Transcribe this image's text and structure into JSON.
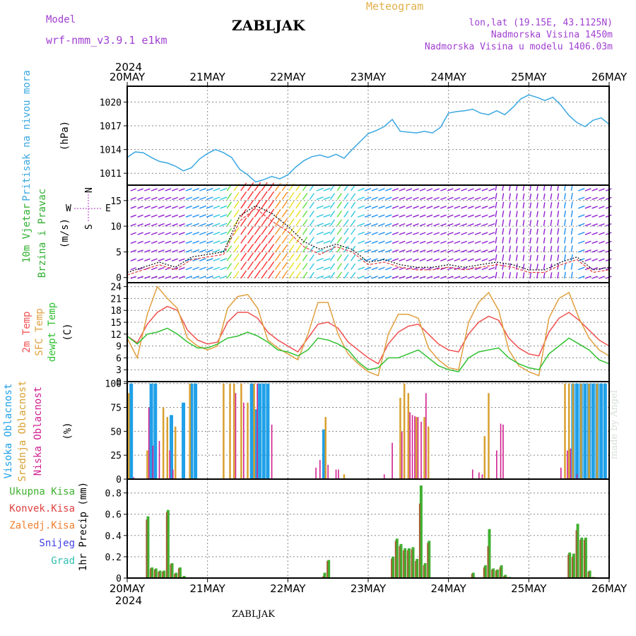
{
  "header": {
    "model_label": "Model",
    "model_name": "wrf-nmm_v3.9.1 e1km",
    "title": "ZABLJAK",
    "product": "Meteogram",
    "lonlat": "lon,lat (19.15E, 43.1125N)",
    "altitude": "Nadmorska Visina 1450m",
    "model_altitude": "Nadmorska Visina u modelu 1406.03m",
    "footer_station": "ZABLJAK",
    "watermark": "made by Angel"
  },
  "time_axis": {
    "year": "2024",
    "labels": [
      "20MAY",
      "21MAY",
      "22MAY",
      "23MAY",
      "24MAY",
      "25MAY",
      "26MAY"
    ]
  },
  "colors": {
    "pressure": "#3aa8e0",
    "t2m": "#f05050",
    "sfc": "#e0a040",
    "dewpt": "#30c030",
    "high_cloud": "#20a0e8",
    "mid_cloud": "#d8a030",
    "low_cloud": "#d02090",
    "total_precip": "#40b030",
    "conv_precip": "#e04040",
    "frz_precip": "#f08030",
    "snow": "#4040e0",
    "grad": "#30c0b0",
    "wind_dir": "#b030c0",
    "wind_speed_label": "#30b030"
  },
  "chart_data": [
    {
      "type": "line",
      "ylabel_main": "Pritisak na nivou mora",
      "ylabel_unit": "(hPa)",
      "yticks": [
        "1011",
        "1014",
        "1017",
        "1020"
      ],
      "ylim": [
        1009.5,
        1022
      ],
      "grid": true,
      "x_days": [
        0,
        0.1,
        0.2,
        0.3,
        0.4,
        0.5,
        0.6,
        0.7,
        0.8,
        0.9,
        1.0,
        1.1,
        1.2,
        1.3,
        1.4,
        1.5,
        1.6,
        1.7,
        1.8,
        1.9,
        2.0,
        2.1,
        2.2,
        2.3,
        2.4,
        2.5,
        2.6,
        2.7,
        2.8,
        2.9,
        3.0,
        3.1,
        3.2,
        3.3,
        3.4,
        3.5,
        3.6,
        3.7,
        3.8,
        3.9,
        4.0,
        4.1,
        4.2,
        4.3,
        4.4,
        4.5,
        4.6,
        4.7,
        4.8,
        4.9,
        5.0,
        5.1,
        5.2,
        5.3,
        5.4,
        5.5,
        5.6,
        5.7,
        5.8,
        5.9,
        6.0
      ],
      "series": [
        {
          "values": [
            1013.0,
            1013.7,
            1013.6,
            1013.0,
            1012.5,
            1012.3,
            1011.9,
            1011.3,
            1011.7,
            1012.8,
            1013.5,
            1014.0,
            1013.6,
            1013.0,
            1011.5,
            1010.8,
            1009.9,
            1010.2,
            1010.6,
            1010.3,
            1010.8,
            1011.8,
            1012.6,
            1013.1,
            1013.3,
            1013.0,
            1013.4,
            1012.9,
            1014.0,
            1015.0,
            1016.0,
            1016.4,
            1016.9,
            1017.8,
            1016.3,
            1016.2,
            1016.1,
            1016.3,
            1016.1,
            1016.8,
            1018.6,
            1018.8,
            1018.9,
            1019.1,
            1018.6,
            1018.4,
            1018.9,
            1018.4,
            1019.3,
            1020.4,
            1020.9,
            1020.6,
            1020.2,
            1020.6,
            1019.6,
            1018.3,
            1017.4,
            1016.9,
            1017.7,
            1018.0,
            1017.2
          ],
          "color": "#3aa8e0"
        }
      ]
    },
    {
      "type": "line",
      "ylabel_main": "10m Vjetar",
      "ylabel_sub": "Brzina i Pravac",
      "ylabel_unit": "(m/s)",
      "compass_labels": [
        "N",
        "E",
        "S",
        "W"
      ],
      "yticks": [
        "0",
        "5",
        "10",
        "15"
      ],
      "ylim": [
        -1,
        18
      ],
      "grid": true,
      "x_days": [
        0,
        0.2,
        0.4,
        0.6,
        0.8,
        1.0,
        1.2,
        1.4,
        1.6,
        1.8,
        2.0,
        2.2,
        2.4,
        2.6,
        2.8,
        3.0,
        3.2,
        3.4,
        3.6,
        3.8,
        4.0,
        4.2,
        4.4,
        4.6,
        4.8,
        5.0,
        5.2,
        5.4,
        5.6,
        5.8,
        6.0
      ],
      "series": [
        {
          "name": "speed",
          "values": [
            0.5,
            1.5,
            2.5,
            1.5,
            3.5,
            4.0,
            4.5,
            11.0,
            13.5,
            11.0,
            9.0,
            6.0,
            4.5,
            6.0,
            5.0,
            2.5,
            3.0,
            2.0,
            1.5,
            1.5,
            2.0,
            1.5,
            2.0,
            2.5,
            2.0,
            1.0,
            1.0,
            2.5,
            3.5,
            1.0,
            1.5
          ],
          "color": "#e04040"
        },
        {
          "name": "gust",
          "values": [
            1.0,
            2.0,
            3.0,
            2.0,
            4.0,
            4.5,
            5.0,
            12.0,
            14.0,
            12.5,
            10.0,
            7.0,
            5.5,
            6.5,
            5.5,
            3.0,
            3.5,
            2.5,
            2.0,
            2.0,
            2.5,
            2.0,
            2.5,
            3.0,
            2.5,
            1.5,
            1.5,
            3.0,
            4.0,
            1.5,
            2.0
          ],
          "color": "#000000"
        }
      ]
    },
    {
      "type": "line",
      "ylabel_lines": [
        {
          "text": "2m Temp",
          "color": "#f05050"
        },
        {
          "text": "SFC Temp",
          "color": "#e0a040"
        },
        {
          "text": "dewpt Temp",
          "color": "#30c030"
        }
      ],
      "ylabel_unit": "(C)",
      "yticks": [
        "0",
        "3",
        "6",
        "9",
        "12",
        "15",
        "18",
        "21",
        "24"
      ],
      "ylim": [
        0,
        25
      ],
      "grid": true,
      "x_days": [
        0,
        0.125,
        0.25,
        0.375,
        0.5,
        0.625,
        0.75,
        0.875,
        1.0,
        1.125,
        1.25,
        1.375,
        1.5,
        1.625,
        1.75,
        1.875,
        2.0,
        2.125,
        2.25,
        2.375,
        2.5,
        2.625,
        2.75,
        2.875,
        3.0,
        3.125,
        3.25,
        3.375,
        3.5,
        3.625,
        3.75,
        3.875,
        4.0,
        4.125,
        4.25,
        4.375,
        4.5,
        4.625,
        4.75,
        4.875,
        5.0,
        5.125,
        5.25,
        5.375,
        5.5,
        5.625,
        5.75,
        5.875,
        6.0
      ],
      "series": [
        {
          "name": "2m Temp",
          "values": [
            11.5,
            9.8,
            14.5,
            17.5,
            19.0,
            18.0,
            13.0,
            10.5,
            9.5,
            10.0,
            15.0,
            17.5,
            17.5,
            16.0,
            12.5,
            10.5,
            9.0,
            7.5,
            11.0,
            14.5,
            15.0,
            13.5,
            10.0,
            8.0,
            6.0,
            4.5,
            9.5,
            12.5,
            14.0,
            14.5,
            12.0,
            9.5,
            8.0,
            7.5,
            12.0,
            15.0,
            16.5,
            15.5,
            11.0,
            8.5,
            7.0,
            6.5,
            12.5,
            16.0,
            17.5,
            15.5,
            13.0,
            10.5,
            9.0
          ],
          "color": "#f05050"
        },
        {
          "name": "SFC Temp",
          "values": [
            11.0,
            6.0,
            17.0,
            24.0,
            21.0,
            18.5,
            11.0,
            9.0,
            8.0,
            9.0,
            18.5,
            21.5,
            22.0,
            18.5,
            10.5,
            8.5,
            7.0,
            5.5,
            12.0,
            20.0,
            20.0,
            12.0,
            7.0,
            4.5,
            2.5,
            1.5,
            12.0,
            17.0,
            17.0,
            16.0,
            8.5,
            5.5,
            3.5,
            3.0,
            15.0,
            20.0,
            22.5,
            18.0,
            8.0,
            4.0,
            2.5,
            1.5,
            16.0,
            21.0,
            22.5,
            16.0,
            11.0,
            8.0,
            6.5
          ],
          "color": "#e0a040"
        },
        {
          "name": "dewpt Temp",
          "values": [
            11.5,
            9.5,
            12.0,
            12.5,
            13.5,
            12.0,
            10.0,
            8.5,
            8.5,
            9.5,
            11.0,
            11.5,
            12.5,
            11.5,
            10.0,
            8.0,
            7.5,
            6.5,
            8.0,
            11.0,
            10.5,
            9.5,
            8.0,
            5.0,
            3.0,
            3.5,
            6.0,
            6.0,
            7.0,
            8.0,
            6.0,
            4.0,
            3.0,
            2.5,
            6.0,
            7.5,
            8.0,
            8.5,
            6.0,
            4.5,
            3.5,
            3.0,
            7.0,
            9.0,
            11.0,
            9.5,
            8.0,
            5.5,
            4.5
          ],
          "color": "#30c030"
        }
      ]
    },
    {
      "type": "bar",
      "ylabel_lines": [
        {
          "text": "Visoka Oblacnost",
          "color": "#20a0e8"
        },
        {
          "text": "Srednja Oblacnost",
          "color": "#d8a030"
        },
        {
          "text": "Niska Oblacnost",
          "color": "#d02090"
        }
      ],
      "ylabel_unit": "(%)",
      "yticks": [
        "0",
        "25",
        "50",
        "75",
        "100"
      ],
      "ylim": [
        0,
        102
      ],
      "grid": true,
      "series": [
        {
          "name": "Visoka Oblacnost",
          "color": "#20a0e8",
          "x_days": [
            0.05,
            0.3,
            0.35,
            0.55,
            0.7,
            0.8,
            0.85,
            1.55,
            1.6,
            1.65,
            1.7,
            1.75,
            2.45,
            5.55,
            5.6,
            5.65,
            5.7,
            5.75,
            5.8,
            5.85,
            5.9,
            5.95
          ],
          "values": [
            100,
            100,
            100,
            67,
            80,
            100,
            100,
            100,
            73,
            100,
            100,
            100,
            52,
            100,
            100,
            100,
            100,
            100,
            100,
            100,
            100,
            100
          ]
        },
        {
          "name": "Srednja Oblacnost",
          "color": "#d8a030",
          "x_days": [
            0.02,
            0.25,
            0.45,
            0.5,
            0.6,
            0.78,
            1.2,
            1.28,
            1.33,
            1.42,
            1.5,
            1.58,
            2.47,
            2.7,
            3.4,
            3.45,
            3.5,
            3.6,
            3.7,
            3.75,
            4.45,
            4.5,
            5.45,
            5.5,
            5.55,
            5.65,
            5.75,
            5.85
          ],
          "values": [
            90,
            30,
            75,
            65,
            55,
            100,
            100,
            100,
            100,
            100,
            80,
            100,
            65,
            5,
            85,
            100,
            90,
            65,
            65,
            55,
            45,
            90,
            100,
            100,
            100,
            100,
            100,
            100
          ]
        },
        {
          "name": "Niska Oblacnost",
          "color": "#d02090",
          "x_days": [
            0.08,
            0.27,
            0.32,
            0.4,
            0.53,
            0.57,
            1.35,
            1.45,
            1.62,
            1.8,
            2.35,
            2.4,
            2.5,
            2.6,
            2.63,
            3.2,
            3.3,
            3.42,
            3.52,
            3.55,
            3.58,
            3.62,
            3.66,
            3.72,
            4.3,
            4.38,
            4.42,
            4.6,
            4.65,
            4.68,
            5.4,
            5.48,
            5.52,
            5.6
          ],
          "values": [
            2,
            75,
            35,
            40,
            30,
            10,
            90,
            80,
            100,
            57,
            12,
            20,
            15,
            10,
            10,
            5,
            38,
            50,
            70,
            67,
            66,
            65,
            60,
            90,
            10,
            7,
            5,
            30,
            58,
            57,
            12,
            30,
            32,
            5
          ]
        }
      ]
    },
    {
      "type": "bar",
      "ylabel_main": "1hr Precip (mm)",
      "yticks": [
        "0",
        "0.2",
        "0.4",
        "0.6",
        "0.8"
      ],
      "ylim": [
        0,
        0.93
      ],
      "grid": true,
      "legend": [
        {
          "text": "Ukupna Kisa",
          "color": "#40b030"
        },
        {
          "text": "Konvek.Kisa",
          "color": "#e04040"
        },
        {
          "text": "Zaledj.Kisa",
          "color": "#f08030"
        },
        {
          "text": "Snijeg",
          "color": "#4040e0"
        },
        {
          "text": "Grad",
          "color": "#30c0b0"
        }
      ],
      "x_days": [
        0.25,
        0.3,
        0.35,
        0.4,
        0.45,
        0.5,
        0.55,
        0.6,
        0.65,
        0.7,
        2.45,
        2.5,
        3.3,
        3.35,
        3.4,
        3.45,
        3.5,
        3.55,
        3.6,
        3.65,
        3.7,
        3.75,
        4.3,
        4.45,
        4.5,
        4.55,
        4.6,
        4.65,
        4.7,
        4.75,
        5.5,
        5.55,
        5.6,
        5.65,
        5.7,
        5.75,
        5.8
      ],
      "series": [
        {
          "name": "Ukupna Kisa",
          "color": "#40b030",
          "values": [
            0.58,
            0.1,
            0.09,
            0.07,
            0.07,
            0.64,
            0.14,
            0.05,
            0.1,
            0.02,
            0.05,
            0.17,
            0.2,
            0.37,
            0.32,
            0.28,
            0.28,
            0.29,
            0.18,
            0.87,
            0.14,
            0.35,
            0.05,
            0.12,
            0.46,
            0.09,
            0.08,
            0.12,
            0.03,
            0.01,
            0.24,
            0.23,
            0.51,
            0.38,
            0.38,
            0.07,
            0.01
          ]
        },
        {
          "name": "Konvek.Kisa",
          "color": "#a06030",
          "values": [
            0.55,
            0.09,
            0.08,
            0.06,
            0.06,
            0.62,
            0.13,
            0.04,
            0.09,
            0.01,
            0.02,
            0.16,
            0.18,
            0.35,
            0.3,
            0.26,
            0.26,
            0.27,
            0.16,
            0.7,
            0.12,
            0.33,
            0.04,
            0.1,
            0.3,
            0.08,
            0.07,
            0.1,
            0.02,
            0.01,
            0.22,
            0.2,
            0.45,
            0.36,
            0.36,
            0.06,
            0.01
          ]
        }
      ]
    }
  ]
}
